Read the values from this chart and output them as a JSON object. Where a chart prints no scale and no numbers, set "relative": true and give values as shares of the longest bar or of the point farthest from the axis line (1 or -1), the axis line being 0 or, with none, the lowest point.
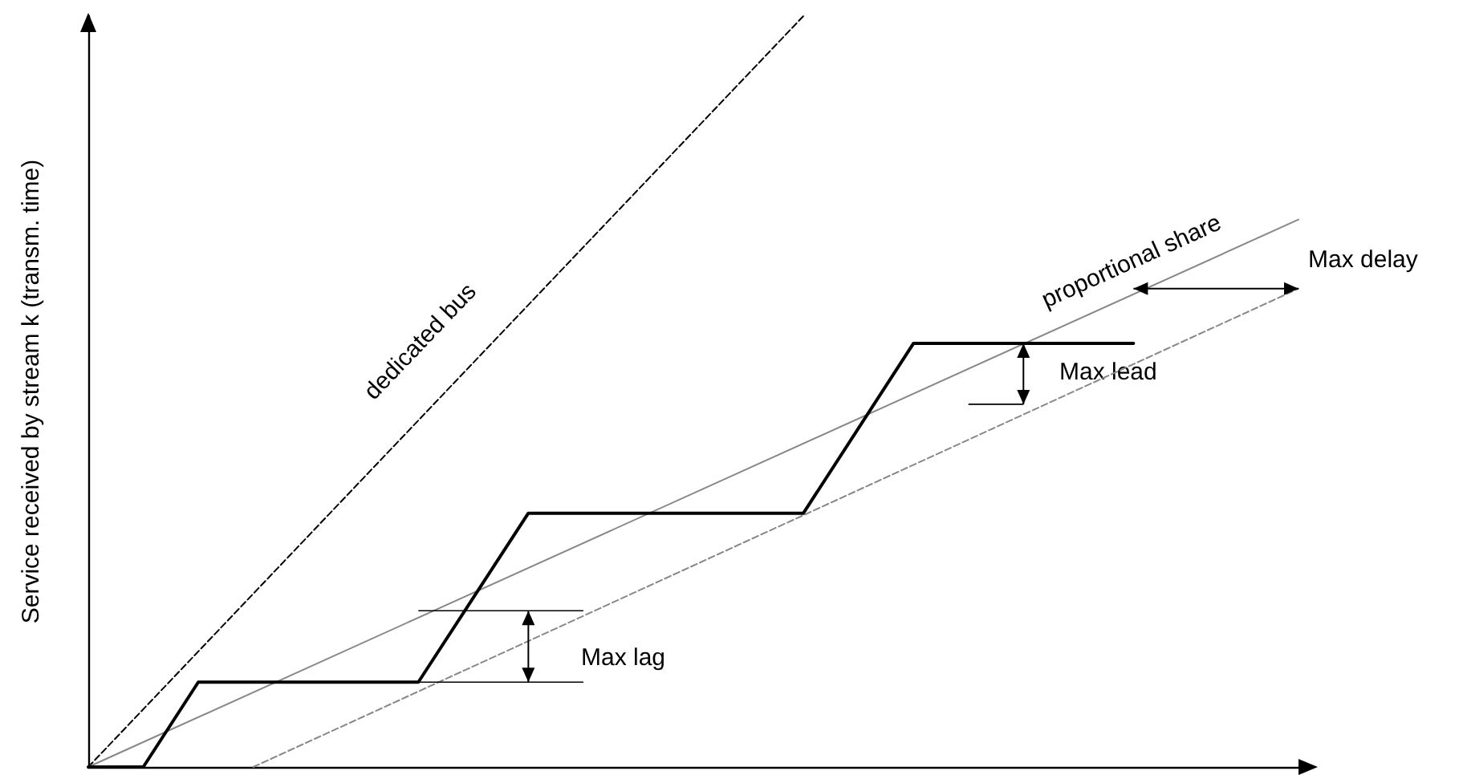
{
  "chart_data": {
    "type": "line",
    "relative": true,
    "ylabel": "Service received by stream k (transm. time)",
    "grid": false,
    "marker": "none",
    "categories": [
      null,
      null,
      null,
      null,
      null,
      null,
      null,
      null,
      null,
      null,
      null,
      null,
      null,
      null,
      null,
      null,
      null,
      null,
      null,
      null,
      null,
      null,
      null
    ],
    "series": [
      {
        "color": "#000000",
        "line_style": "dashed",
        "values": [
          0,
          null,
          null,
          null,
          null,
          null,
          null,
          null,
          null,
          null,
          null,
          null,
          null,
          1,
          null,
          null,
          null,
          null,
          null,
          null,
          null,
          null,
          null
        ]
      },
      {
        "color": "#888888",
        "line_style": "solid",
        "values": [
          0,
          null,
          null,
          null,
          null,
          null,
          null,
          null,
          null,
          null,
          null,
          null,
          null,
          null,
          null,
          null,
          null,
          null,
          null,
          null,
          null,
          null,
          0.729
        ]
      },
      {
        "color": "#888888",
        "line_style": "dashed",
        "values": [
          null,
          null,
          null,
          0,
          null,
          null,
          null,
          null,
          null,
          null,
          null,
          null,
          null,
          null,
          null,
          null,
          null,
          null,
          null,
          null,
          null,
          null,
          0.637
        ]
      },
      {
        "color": "#000000",
        "line_style": "solid",
        "values": [
          0,
          0,
          0.113,
          null,
          null,
          null,
          0.113,
          null,
          0.338,
          null,
          null,
          null,
          null,
          0.338,
          null,
          0.564,
          null,
          null,
          null,
          0.564,
          null,
          null,
          null
        ]
      }
    ],
    "annotations": [
      "dedicated bus",
      "proportional share",
      "Max delay",
      "Max lead",
      "Max lag"
    ]
  }
}
